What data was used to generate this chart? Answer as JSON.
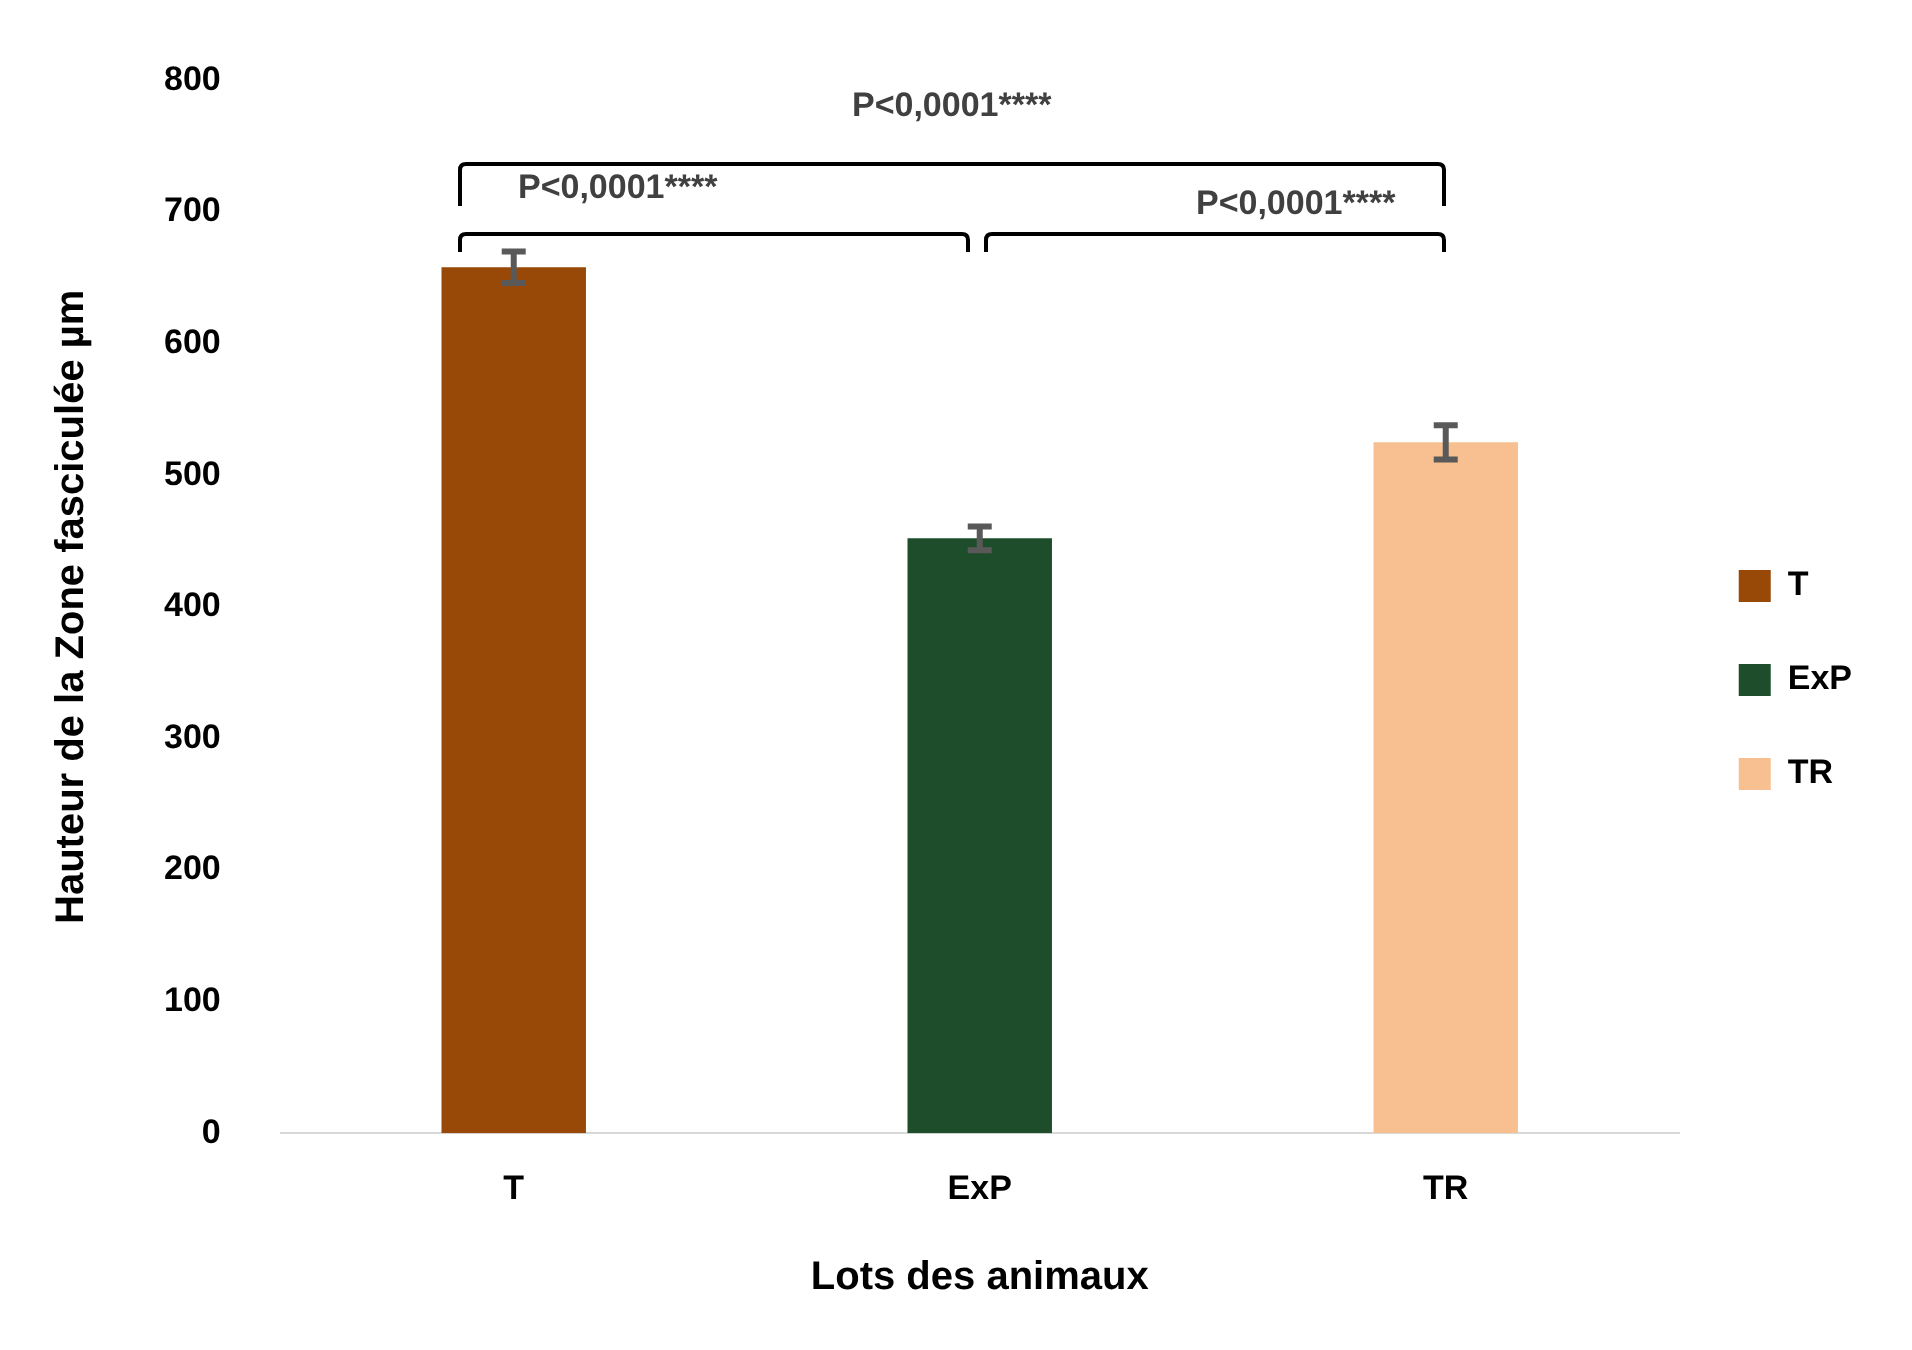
{
  "chart_data": {
    "type": "bar",
    "xlabel": "Lots des animaux",
    "ylabel": "Hauteur de la Zone fasciculée µm",
    "categories": [
      "T",
      "ExP",
      "TR"
    ],
    "series": [
      {
        "name": "T",
        "color": "#984807",
        "values": [
          658,
          null,
          null
        ],
        "errors": [
          12,
          null,
          null
        ]
      },
      {
        "name": "ExP",
        "color": "#1e4d2b",
        "values": [
          null,
          452,
          null
        ],
        "errors": [
          null,
          9,
          null
        ]
      },
      {
        "name": "TR",
        "color": "#f8c090",
        "values": [
          null,
          null,
          525
        ],
        "errors": [
          null,
          null,
          13
        ]
      }
    ],
    "ylim": [
      0,
      800
    ],
    "yticks": [
      0,
      100,
      200,
      300,
      400,
      500,
      600,
      700,
      800
    ],
    "grid": false,
    "legend": "right",
    "annotations": [
      "P<0,0001****",
      "P<0,0001****",
      "P<0,0001****"
    ]
  }
}
